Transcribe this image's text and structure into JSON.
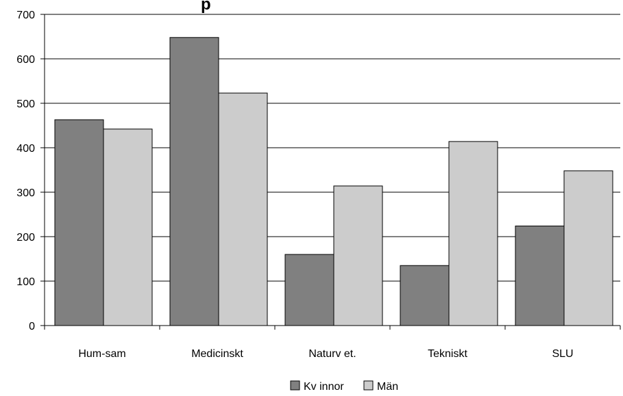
{
  "chart_data": {
    "type": "bar",
    "title": "p",
    "categories": [
      "Hum-sam",
      "Medicinskt",
      "Naturv et.",
      "Tekniskt",
      "SLU"
    ],
    "series": [
      {
        "name": "Kv innor",
        "values": [
          463,
          648,
          160,
          135,
          224
        ],
        "color": "#808080"
      },
      {
        "name": "Män",
        "values": [
          442,
          523,
          314,
          414,
          348
        ],
        "color": "#cccccc"
      }
    ],
    "xlabel": "",
    "ylabel": "",
    "ylim": [
      0,
      700
    ],
    "yticks": [
      0,
      100,
      200,
      300,
      400,
      500,
      600,
      700
    ],
    "grid": true,
    "legend": "bottom-center"
  }
}
